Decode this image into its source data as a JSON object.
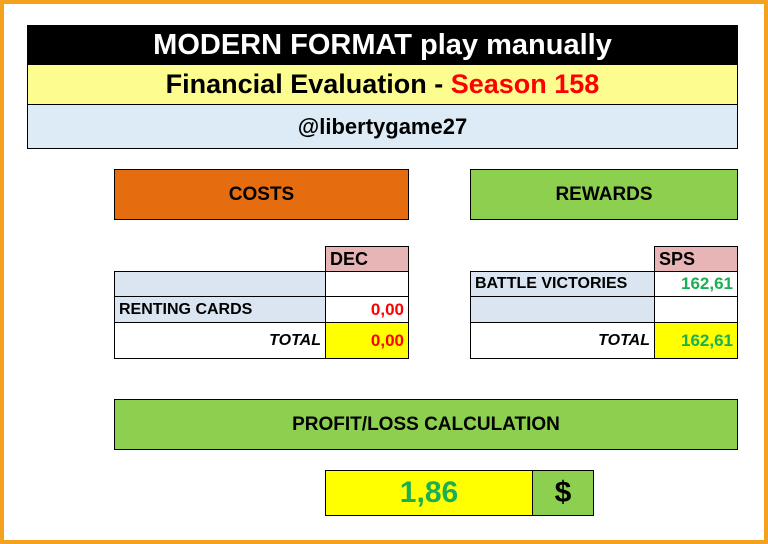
{
  "header": {
    "title": "MODERN FORMAT play manually",
    "subtitle_prefix": "Financial Evaluation - ",
    "subtitle_season": "Season 158",
    "account": "@libertygame27"
  },
  "costs": {
    "title": "COSTS",
    "column_header": "DEC",
    "rows": [
      {
        "label": "",
        "value": ""
      },
      {
        "label": "RENTING CARDS",
        "value": "0,00"
      }
    ],
    "total_label": "TOTAL",
    "total_value": "0,00"
  },
  "rewards": {
    "title": "REWARDS",
    "column_header": "SPS",
    "rows": [
      {
        "label": "BATTLE VICTORIES",
        "value": "162,61"
      },
      {
        "label": "",
        "value": ""
      }
    ],
    "total_label": "TOTAL",
    "total_value": "162,61"
  },
  "profit": {
    "title": "PROFIT/LOSS CALCULATION",
    "value": "1,86",
    "currency": "$"
  },
  "colors": {
    "border": "#f4a21e",
    "costs_header": "#e56d10",
    "rewards_header": "#8dd04f",
    "negative_value": "#ff0000",
    "positive_value": "#1aaf54",
    "highlight": "#ffff00"
  }
}
